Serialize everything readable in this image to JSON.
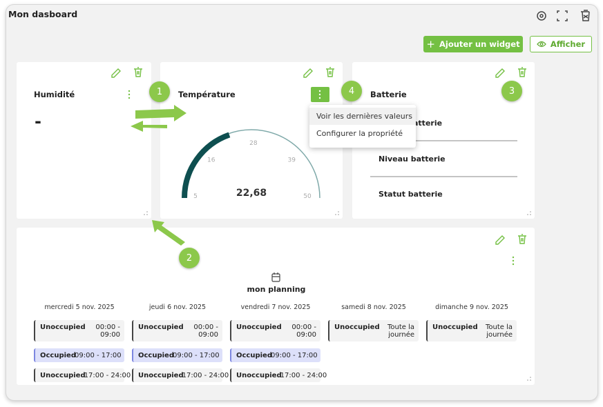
{
  "header": {
    "title": "Mon dasboard",
    "add_button": "Ajouter un widget",
    "view_button": "Afficher"
  },
  "widgets": {
    "humidity": {
      "title": "Humidité",
      "value": "-"
    },
    "temperature": {
      "title": "Température",
      "gauge": {
        "ticks": [
          5,
          16,
          28,
          39,
          50
        ],
        "value": 22.68,
        "value_label": "22,68"
      },
      "menu": [
        "Voir les dernières valeurs",
        "Configurer la propriété"
      ]
    },
    "battery": {
      "title": "Batterie",
      "fields": [
        "atterie",
        "Niveau batterie",
        "Statut batterie"
      ]
    },
    "planning": {
      "title": "mon planning",
      "days": [
        {
          "date": "mercredi 5 nov. 2025",
          "slots": [
            {
              "status": "Unoccupied",
              "time": "00:00 - 09:00"
            },
            {
              "status": "Occupied",
              "time": "09:00 - 17:00"
            },
            {
              "status": "Unoccupied",
              "time": "17:00 - 24:00"
            }
          ]
        },
        {
          "date": "jeudi 6 nov. 2025",
          "slots": [
            {
              "status": "Unoccupied",
              "time": "00:00 - 09:00"
            },
            {
              "status": "Occupied",
              "time": "09:00 - 17:00"
            },
            {
              "status": "Unoccupied",
              "time": "17:00 - 24:00"
            }
          ]
        },
        {
          "date": "vendredi 7 nov. 2025",
          "slots": [
            {
              "status": "Unoccupied",
              "time": "00:00 - 09:00"
            },
            {
              "status": "Occupied",
              "time": "09:00 - 17:00"
            },
            {
              "status": "Unoccupied",
              "time": "17:00 - 24:00"
            }
          ]
        },
        {
          "date": "samedi 8 nov. 2025",
          "slots": [
            {
              "status": "Unoccupied",
              "time": "Toute la journée"
            }
          ]
        },
        {
          "date": "dimanche 9 nov. 2025",
          "slots": [
            {
              "status": "Unoccupied",
              "time": "Toute la journée"
            }
          ]
        }
      ]
    }
  },
  "annotations": [
    "1",
    "2",
    "3",
    "4"
  ]
}
